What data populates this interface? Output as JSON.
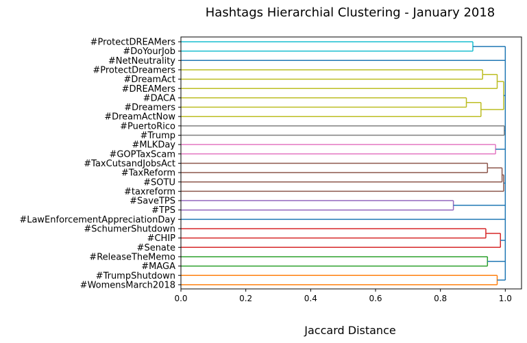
{
  "chart_data": {
    "type": "dendrogram",
    "title": "Hashtags Hierarchial Clustering - January 2018",
    "xlabel": "Jaccard Distance",
    "ylabel": "",
    "orientation": "horizontal",
    "xlim": [
      0.0,
      1.05
    ],
    "xticks": [
      "0.0",
      "0.2",
      "0.4",
      "0.6",
      "0.8",
      "1.0"
    ],
    "grid": false,
    "leaves": [
      "#ProtectDREAMers",
      "#DoYourJob",
      "#NetNeutrality",
      "#ProtectDreamers",
      "#DreamAct",
      "#DREAMers",
      "#DACA",
      "#Dreamers",
      "#DreamActNow",
      "#PuertoRico",
      "#Trump",
      "#MLKDay",
      "#GOPTaxScam",
      "#TaxCutsandJobsAct",
      "#TaxReform",
      "#SOTU",
      "#taxreform",
      "#SaveTPS",
      "#TPS",
      "#LawEnforcementAppreciationDay",
      "#SchumerShutdown",
      "#CHIP",
      "#Senate",
      "#ReleaseTheMemo",
      "#MAGA",
      "#TrumpShutdown",
      "#WomensMarch2018"
    ],
    "merges": [
      {
        "a": "#ProtectDREAMers",
        "b": "#DoYourJob",
        "distance": 0.9,
        "color": "#17becf"
      },
      {
        "a": "#DACA",
        "b": "#Dreamers",
        "distance": 0.88,
        "color": "#bcbd22"
      },
      {
        "a": "#DACA+#Dreamers",
        "b": "#DreamActNow",
        "distance": 0.925,
        "color": "#bcbd22"
      },
      {
        "a": "#ProtectDreamers",
        "b": "#DreamAct",
        "distance": 0.93,
        "color": "#bcbd22"
      },
      {
        "a": "#ProtectDreamers+#DreamAct",
        "b": "#DREAMers",
        "distance": 0.975,
        "color": "#bcbd22"
      },
      {
        "a": "dreamers-group-a",
        "b": "dreamers-group-b",
        "distance": 0.995,
        "color": "#bcbd22"
      },
      {
        "a": "#PuertoRico",
        "b": "#Trump",
        "distance": 0.997,
        "color": "#7f7f7f"
      },
      {
        "a": "#MLKDay",
        "b": "#GOPTaxScam",
        "distance": 0.97,
        "color": "#e377c2"
      },
      {
        "a": "#TaxCutsandJobsAct",
        "b": "#TaxReform",
        "distance": 0.945,
        "color": "#8c564b"
      },
      {
        "a": "#TaxCutsandJobsAct+#TaxReform",
        "b": "#SOTU",
        "distance": 0.99,
        "color": "#8c564b"
      },
      {
        "a": "tax-group",
        "b": "#taxreform",
        "distance": 0.995,
        "color": "#8c564b"
      },
      {
        "a": "#SaveTPS",
        "b": "#TPS",
        "distance": 0.84,
        "color": "#9467bd"
      },
      {
        "a": "#SchumerShutdown",
        "b": "#CHIP",
        "distance": 0.94,
        "color": "#d62728"
      },
      {
        "a": "#SchumerShutdown+#CHIP",
        "b": "#Senate",
        "distance": 0.985,
        "color": "#d62728"
      },
      {
        "a": "#ReleaseTheMemo",
        "b": "#MAGA",
        "distance": 0.945,
        "color": "#2ca02c"
      },
      {
        "a": "#TrumpShutdown",
        "b": "#WomensMarch2018",
        "distance": 0.975,
        "color": "#ff7f0e"
      },
      {
        "a": "all-clusters",
        "b": "root",
        "distance": 1.0,
        "color": "#1f77b4"
      }
    ],
    "colors": {
      "above_threshold": "#1f77b4",
      "cyan": "#17becf",
      "olive": "#bcbd22",
      "gray": "#7f7f7f",
      "pink": "#e377c2",
      "brown": "#8c564b",
      "purple": "#9467bd",
      "red": "#d62728",
      "green": "#2ca02c",
      "orange": "#ff7f0e"
    }
  }
}
